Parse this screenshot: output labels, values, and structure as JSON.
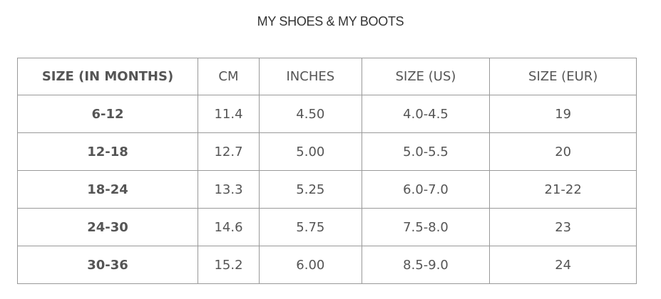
{
  "title": "MY SHOES & MY BOOTS",
  "headers": [
    "SIZE (IN MONTHS)",
    "CM",
    "INCHES",
    "SIZE (US)",
    "SIZE (EUR)"
  ],
  "rows": [
    [
      "6-12",
      "11.4",
      "4.50",
      "4.0-4.5",
      "19"
    ],
    [
      "12-18",
      "12.7",
      "5.00",
      "5.0-5.5",
      "20"
    ],
    [
      "18-24",
      "13.3",
      "5.25",
      "6.0-7.0",
      "21-22"
    ],
    [
      "24-30",
      "14.6",
      "5.75",
      "7.5-8.0",
      "23"
    ],
    [
      "30-36",
      "15.2",
      "6.00",
      "8.5-9.0",
      "24"
    ]
  ]
}
